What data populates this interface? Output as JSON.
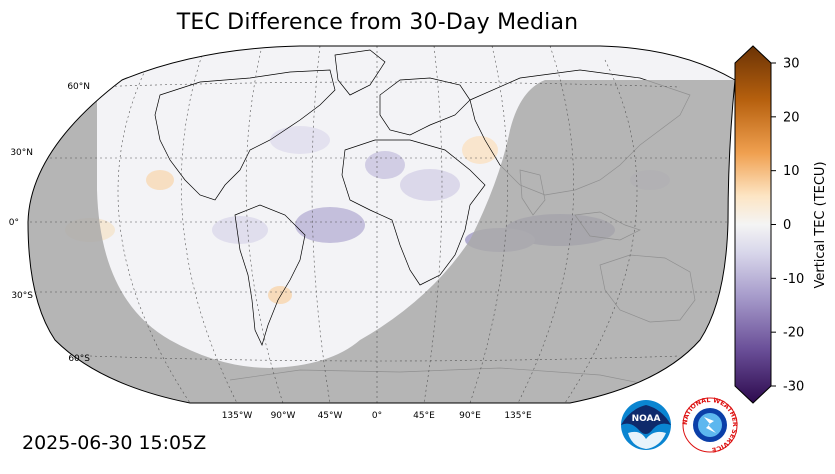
{
  "title": "TEC Difference from 30-Day Median",
  "timestamp": "2025-06-30 15:05Z",
  "map": {
    "lat_labels": [
      "60°N",
      "30°N",
      "0°",
      "30°S",
      "60°S"
    ],
    "lon_labels": [
      "135°W",
      "90°W",
      "45°W",
      "0°",
      "45°E",
      "90°E",
      "135°E"
    ]
  },
  "colorbar": {
    "label": "Vertical TEC (TECU)",
    "ticks": [
      "30",
      "20",
      "10",
      "0",
      "-10",
      "-20",
      "-30"
    ],
    "range": [
      -30,
      30
    ]
  },
  "logos": {
    "noaa_text": "NOAA",
    "nws_text": "NATIONAL WEATHER SERVICE"
  },
  "colors": {
    "night_shade": "#a9a9a9",
    "day_bg": "#f3f3f6",
    "negative": "#4b1f73",
    "positive": "#7a3a06"
  }
}
